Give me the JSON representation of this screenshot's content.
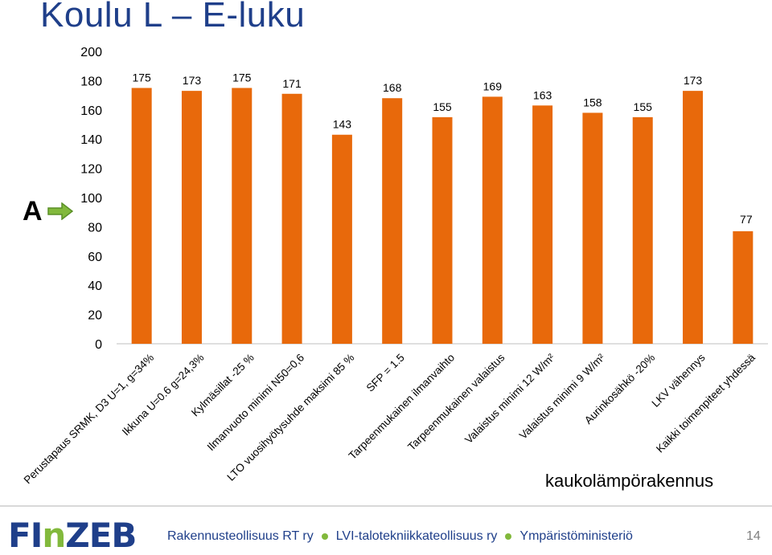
{
  "slide": {
    "title": "Koulu L – E-luku",
    "marker_letter": "A",
    "building_type": "kaukolämpörakennus",
    "page_number": "14"
  },
  "footer": {
    "logo_fi": "FI",
    "logo_n": "n",
    "logo_zeb": "ZEB",
    "orgs": [
      "Rakennusteollisuus RT ry",
      "LVI-talotekniikkateollisuus ry",
      "Ympäristöministeriö"
    ]
  },
  "colors": {
    "bar": "#e8690b",
    "title": "#1f3f8a",
    "accent_green": "#82b93c",
    "gridline": "#d9d9d9"
  },
  "chart_data": {
    "type": "bar",
    "categories": [
      "Perustapaus SRMK, D3 U=1, g=34%",
      "Ikkuna U=0.6 g=24,3%",
      "Kylmäsillat -25 %",
      "Ilmanvuoto minimi N50=0,6",
      "LTO vuosihyötysuhde maksimi 85 %",
      "SFP = 1.5",
      "Tarpeenmukainen ilmanvaihto",
      "Tarpeenmukainen valaistus",
      "Valaistus minimi 12 W/m²",
      "Valaistus minimi 9 W/m²",
      "Aurinkosähkö -20%",
      "LKV vähennys",
      "Kaikki toimenpiteet yhdessä"
    ],
    "values": [
      175,
      173,
      175,
      171,
      143,
      168,
      155,
      169,
      163,
      158,
      155,
      173,
      77
    ],
    "data_labels": [
      "175",
      "173",
      "175",
      "171",
      "143",
      "168",
      "155",
      "169",
      "163",
      "158",
      "155",
      "173",
      "77"
    ],
    "yticks": [
      "0",
      "20",
      "40",
      "60",
      "80",
      "100",
      "120",
      "140",
      "160",
      "180",
      "200"
    ],
    "ylim": [
      0,
      200
    ],
    "title": "",
    "xlabel": "",
    "ylabel": "",
    "grid": false,
    "legend": "none"
  }
}
